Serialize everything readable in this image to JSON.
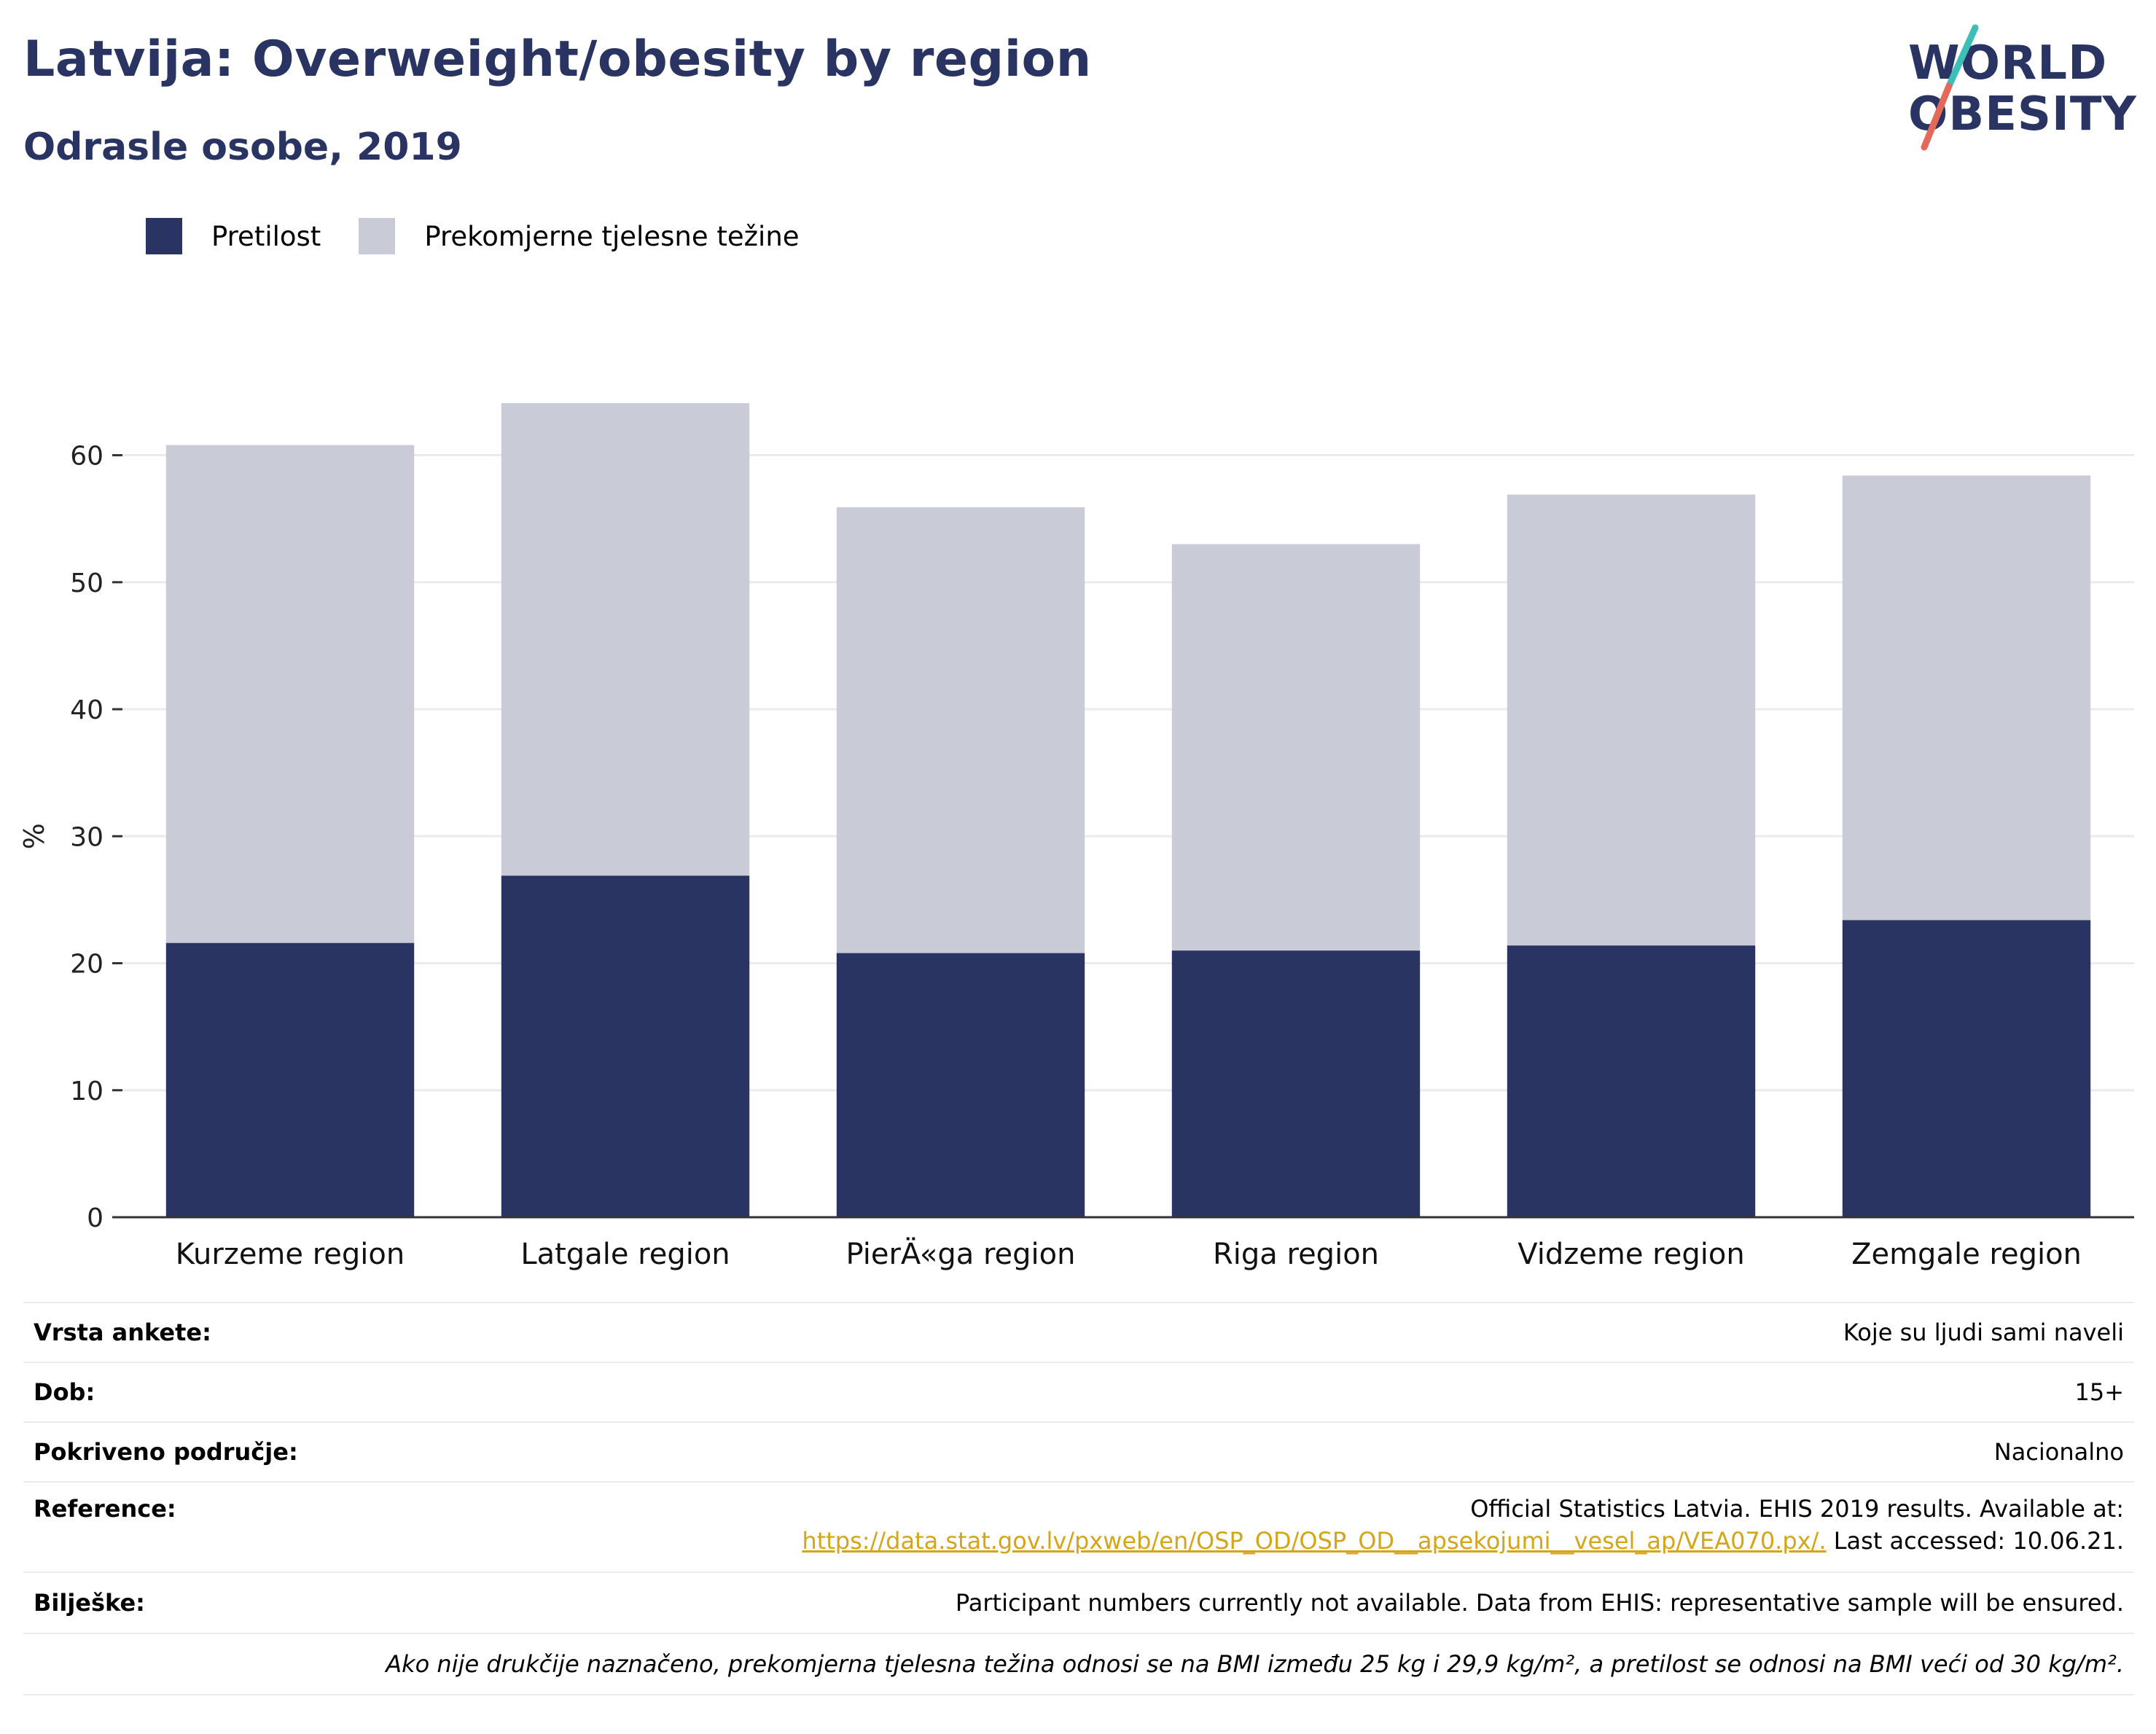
{
  "title": "Latvija: Overweight/obesity by region",
  "subtitle": "Odrasle osobe, 2019",
  "logo": {
    "line1": "WORLD",
    "line2": "OBESITY"
  },
  "colors": {
    "obesity": "#293462",
    "overweight": "#c9cbd6",
    "accent_teal": "#3bbfb8",
    "accent_red": "#e36a5a",
    "link": "#d4a617"
  },
  "legend": [
    {
      "label": "Pretilost",
      "color": "#293462"
    },
    {
      "label": "Prekomjerne tjelesne težine",
      "color": "#c9cbd6"
    }
  ],
  "chart_data": {
    "type": "bar",
    "stacked": true,
    "categories": [
      "Kurzeme region",
      "Latgale region",
      "PierÄ«ga region",
      "Riga region",
      "Vidzeme region",
      "Zemgale region"
    ],
    "series": [
      {
        "name": "Pretilost",
        "values": [
          21.6,
          26.9,
          20.8,
          21.0,
          21.4,
          23.4
        ]
      },
      {
        "name": "Prekomjerne tjelesne težine",
        "values": [
          39.2,
          37.2,
          35.1,
          32.0,
          35.5,
          35.0
        ]
      }
    ],
    "ylabel": "%",
    "ylim": [
      0,
      66
    ],
    "yticks": [
      0,
      10,
      20,
      30,
      40,
      50,
      60
    ],
    "grid": true,
    "legend_position": "top-left"
  },
  "meta": {
    "survey_type_label": "Vrsta ankete:",
    "survey_type_value": "Koje su ljudi sami naveli",
    "age_label": "Dob:",
    "age_value": "15+",
    "coverage_label": "Pokriveno područje:",
    "coverage_value": "Nacionalno",
    "reference_label": "Reference:",
    "reference_line1": "Official Statistics Latvia. EHIS 2019 results. Available at:",
    "reference_link": "https://data.stat.gov.lv/pxweb/en/OSP_OD/OSP_OD__apsekojumi__vesel_ap/VEA070.px/.",
    "reference_tail": " Last accessed: 10.06.21.",
    "notes_label": "Bilješke:",
    "notes_value": "Participant numbers currently not available. Data from EHIS: representative sample will be ensured.",
    "definition_note": "Ako nije drukčije naznačeno, prekomjerna tjelesna težina odnosi se na BMI između 25 kg i 29,9 kg/m², a pretilost se odnosi na BMI veći od 30 kg/m²."
  }
}
